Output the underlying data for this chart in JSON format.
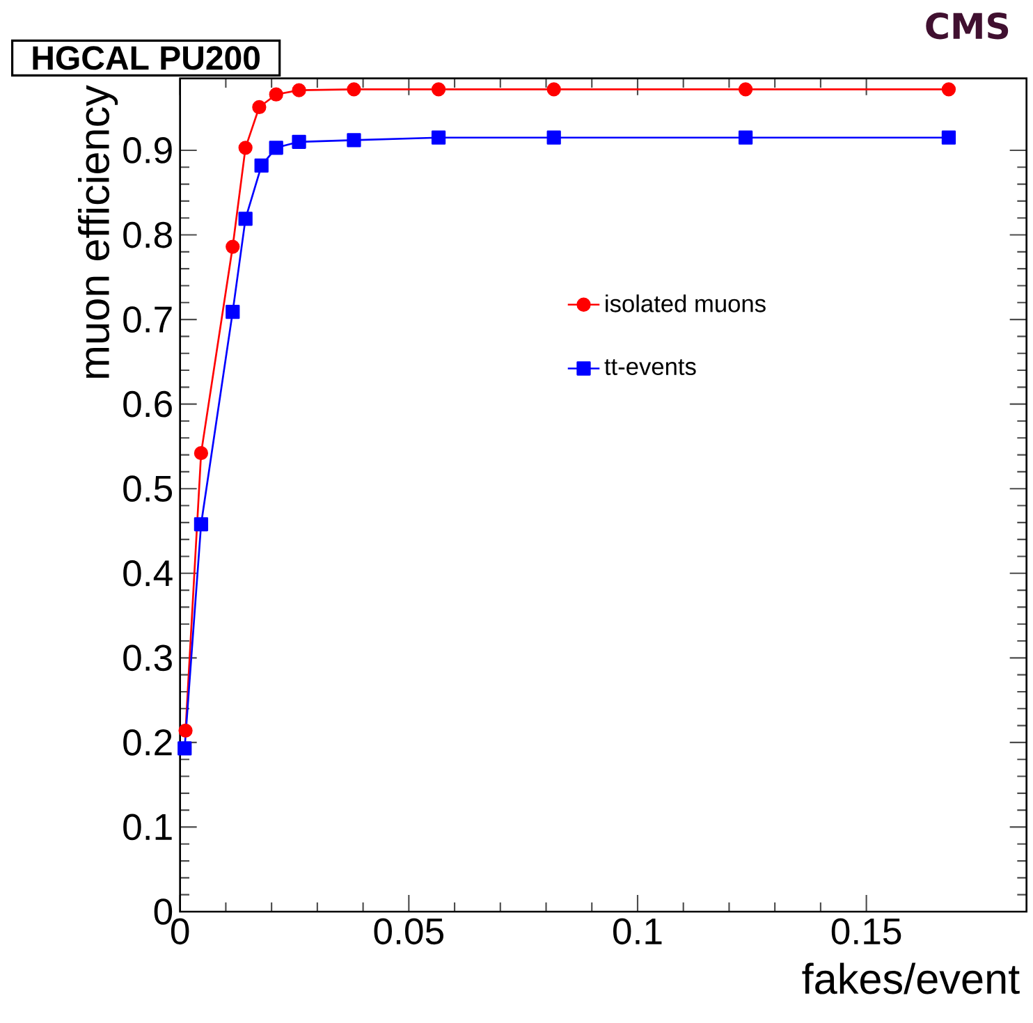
{
  "chart_data": {
    "type": "line",
    "title": "HGCAL PU200",
    "xlabel": "fakes/event",
    "ylabel": "muon efficiency",
    "annotations": [
      "CMS"
    ],
    "xlim": [
      0,
      0.185
    ],
    "ylim": [
      0,
      0.985
    ],
    "xticks": [
      0,
      0.05,
      0.1,
      0.15
    ],
    "yticks": [
      0,
      0.1,
      0.2,
      0.3,
      0.4,
      0.5,
      0.6,
      0.7,
      0.8,
      0.9
    ],
    "legend": "right",
    "line_style": "solid",
    "series": [
      {
        "name": "isolated muons",
        "color": "#ff0000",
        "marker": "circle",
        "x": [
          0.0012,
          0.0046,
          0.0115,
          0.0143,
          0.0173,
          0.021,
          0.026,
          0.038,
          0.0565,
          0.0817,
          0.1236,
          0.168
        ],
        "values": [
          0.214,
          0.542,
          0.786,
          0.903,
          0.951,
          0.966,
          0.971,
          0.972,
          0.972,
          0.972,
          0.972,
          0.972
        ]
      },
      {
        "name": "tt-events",
        "color": "#0000ff",
        "marker": "square",
        "x": [
          0.001,
          0.0046,
          0.0115,
          0.0143,
          0.0178,
          0.021,
          0.026,
          0.038,
          0.0565,
          0.0817,
          0.1236,
          0.168
        ],
        "values": [
          0.193,
          0.458,
          0.709,
          0.819,
          0.882,
          0.903,
          0.91,
          0.912,
          0.915,
          0.915,
          0.915,
          0.915
        ]
      }
    ]
  }
}
